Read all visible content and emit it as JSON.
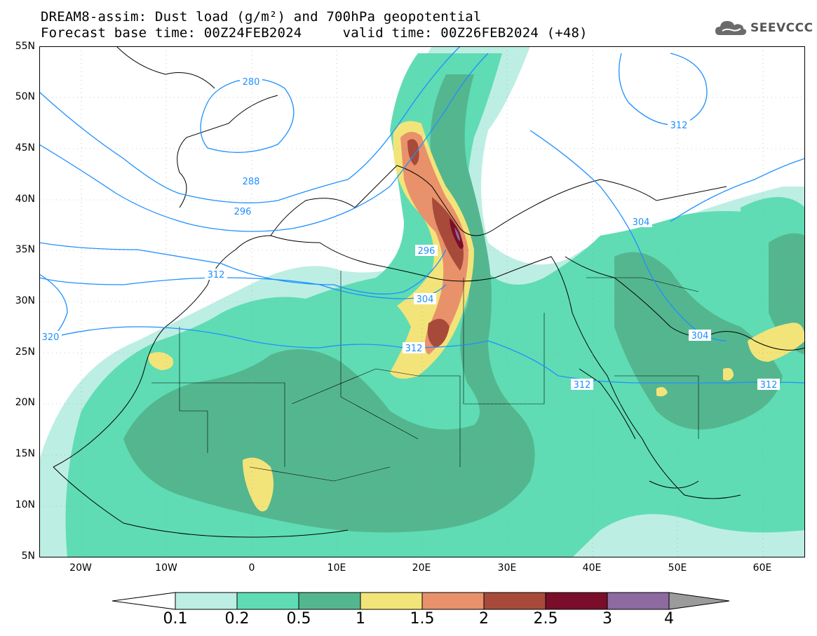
{
  "title": {
    "line1": "DREAM8-assim: Dust load (g/m²) and 700hPa geopotential",
    "line2": "Forecast base time: 00Z24FEB2024     valid time: 00Z26FEB2024 (+48)"
  },
  "logo": {
    "text": "SEEVCCC",
    "icon": "cloud-logo-icon"
  },
  "axes": {
    "lat_labels": [
      "55N",
      "50N",
      "45N",
      "40N",
      "35N",
      "30N",
      "25N",
      "20N",
      "15N",
      "10N",
      "5N"
    ],
    "lon_labels": [
      "20W",
      "10W",
      "0",
      "10E",
      "20E",
      "30E",
      "40E",
      "50E",
      "60E"
    ]
  },
  "contours": {
    "units": "geopotential (dam)",
    "labels": [
      "280",
      "288",
      "296",
      "296",
      "304",
      "304",
      "312",
      "312",
      "312",
      "312",
      "320",
      "312",
      "304"
    ]
  },
  "colorbar": {
    "labels": [
      "0.1",
      "0.2",
      "0.5",
      "1",
      "1.5",
      "2",
      "2.5",
      "3",
      "4"
    ],
    "colors": [
      "#ffffff",
      "#bdeee3",
      "#5fdcb3",
      "#54b68f",
      "#f3e47a",
      "#e8916b",
      "#a84a3a",
      "#7a0e2a",
      "#8d6a9f",
      "#9b9b9b"
    ]
  },
  "colors": {
    "contour": "#1e90ff",
    "coast": "#000000"
  }
}
